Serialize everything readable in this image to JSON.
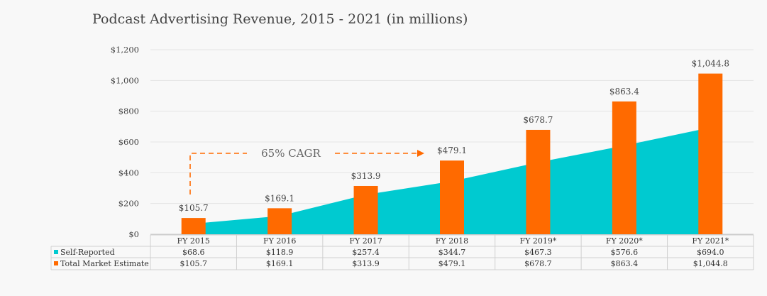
{
  "chart_data": {
    "type": "bar",
    "title": "Podcast Advertising Revenue, 2015 - 2021 (in millions)",
    "categories": [
      "FY 2015",
      "FY 2016",
      "FY 2017",
      "FY 2018",
      "FY 2019*",
      "FY 2020*",
      "FY 2021*"
    ],
    "series": [
      {
        "name": "Self-Reported",
        "render": "area",
        "color": "#00cad0",
        "values": [
          68.6,
          118.9,
          257.4,
          344.7,
          467.3,
          576.6,
          694.0
        ],
        "labels": [
          "$68.6",
          "$118.9",
          "$257.4",
          "$344.7",
          "$467.3",
          "$576.6",
          "$694.0"
        ]
      },
      {
        "name": "Total Market Estimate",
        "render": "bar",
        "color": "#ff6a00",
        "values": [
          105.7,
          169.1,
          313.9,
          479.1,
          678.7,
          863.4,
          1044.8
        ],
        "labels": [
          "$105.7",
          "$169.1",
          "$313.9",
          "$479.1",
          "$678.7",
          "$863.4",
          "$1,044.8"
        ]
      }
    ],
    "ylim": [
      0,
      1200
    ],
    "yticks": [
      0,
      200,
      400,
      600,
      800,
      1000,
      1200
    ],
    "ytick_labels": [
      "$0",
      "$200",
      "$400",
      "$600",
      "$800",
      "$1,000",
      "$1,200"
    ],
    "grid": true,
    "annotation": "65% CAGR",
    "data_table": true
  }
}
